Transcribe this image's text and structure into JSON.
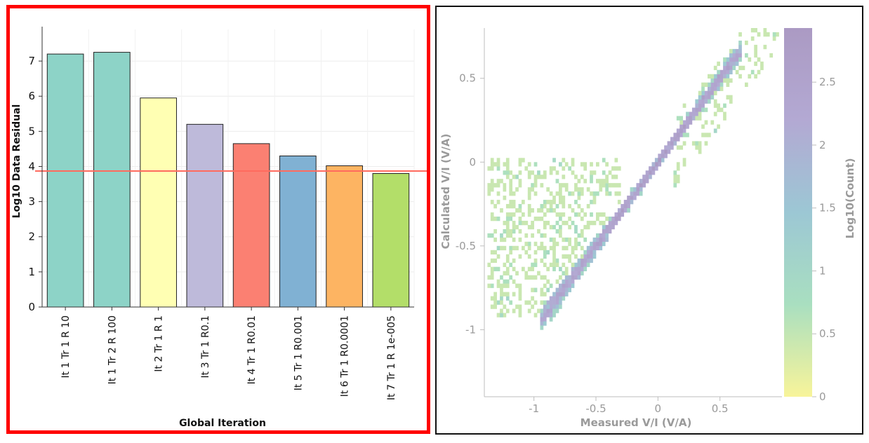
{
  "colors": {
    "frame_highlight": "#ff0000",
    "threshold_line": "#ff6b5e",
    "bar_colors": [
      "#8dd3c7",
      "#8dd3c7",
      "#ffffb3",
      "#bebada",
      "#fb8072",
      "#80b1d3",
      "#fdb462",
      "#b3de69"
    ]
  },
  "chart_data": [
    {
      "type": "bar",
      "categories": [
        "It 1 Tr 1 R 10",
        "It 1 Tr 2 R 100",
        "It 2 Tr 1 R 1",
        "It 3 Tr 1 R0.1",
        "It 4 Tr 1 R0.01",
        "It 5 Tr 1 R0.001",
        "It 6 Tr 1 R0.0001",
        "It 7 Tr 1 R 1e-005"
      ],
      "values": [
        7.2,
        7.25,
        5.95,
        5.2,
        4.65,
        4.3,
        4.02,
        3.8
      ],
      "threshold": 3.87,
      "xlabel": "Global Iteration",
      "ylabel": "Log10 Data Residual",
      "ylim": [
        0,
        7.9
      ],
      "yticks": [
        "0",
        "1",
        "2",
        "3",
        "4",
        "5",
        "6",
        "7"
      ],
      "grid": true
    },
    {
      "type": "heatmap",
      "xlabel": "Measured V/I (V/A)",
      "ylabel": "Calculated V/I (V/A)",
      "xlim": [
        -1.4,
        1.0
      ],
      "ylim": [
        -1.4,
        0.8
      ],
      "xticks": [
        "-1",
        "-0.5",
        "0",
        "0.5"
      ],
      "yticks": [
        "-1",
        "-0.5",
        "0",
        "0.5"
      ],
      "colorbar": {
        "label": "Log10(Count)",
        "range": [
          0,
          2.93
        ],
        "ticks": [
          "0",
          "0.5",
          "1",
          "1.5",
          "2",
          "2.5"
        ],
        "colormap": [
          "#f8f49a",
          "#a9dfc0",
          "#9cc7d4",
          "#b3a9d3",
          "#ab9ac3"
        ]
      },
      "bin_width": 0.025,
      "seed": 7
    }
  ]
}
